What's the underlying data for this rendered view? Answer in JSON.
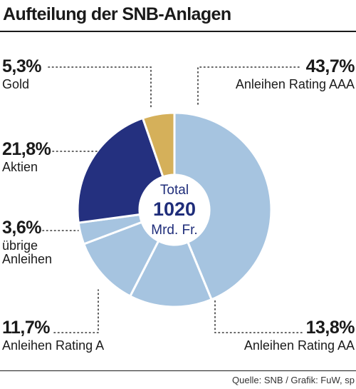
{
  "title": "Aufteilung der SNB-Anlagen",
  "source": "Quelle: SNB / Grafik: FuW, sp",
  "center": {
    "line1": "Total",
    "line2": "1020",
    "line3": "Mrd. Fr."
  },
  "chart_data": {
    "type": "pie",
    "title": "Aufteilung der SNB-Anlagen",
    "total": "1020 Mrd. Fr.",
    "slices": [
      {
        "label": "Anleihen Rating AAA",
        "value": 43.7,
        "display": "43,7%",
        "color": "#a6c4e0"
      },
      {
        "label": "Anleihen Rating AA",
        "value": 13.8,
        "display": "13,8%",
        "color": "#a6c4e0"
      },
      {
        "label": "Anleihen Rating A",
        "value": 11.7,
        "display": "11,7%",
        "color": "#a6c4e0"
      },
      {
        "label": "übrige Anleihen",
        "value": 3.6,
        "display": "3,6%",
        "color": "#a6c4e0"
      },
      {
        "label": "Aktien",
        "value": 21.8,
        "display": "21,8%",
        "color": "#24307f"
      },
      {
        "label": "Gold",
        "value": 5.3,
        "display": "5,3%",
        "color": "#d5b05a"
      }
    ]
  }
}
